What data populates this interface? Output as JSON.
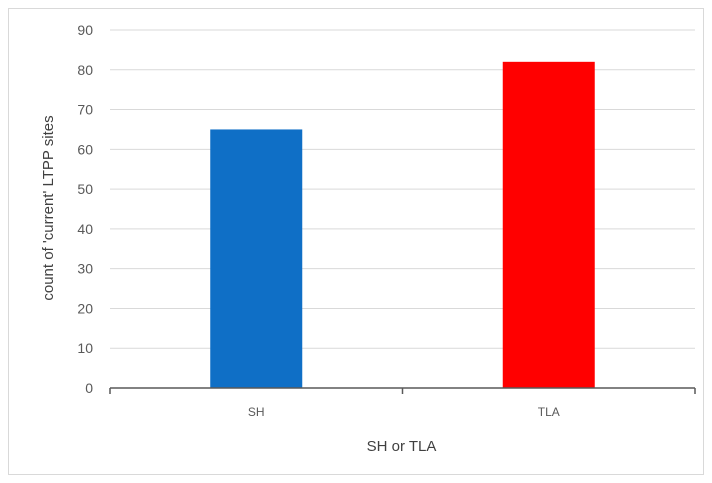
{
  "chart_data": {
    "type": "bar",
    "title": "",
    "xlabel": "SH or TLA",
    "ylabel": "count of 'current' LTPP sites",
    "categories": [
      "SH",
      "TLA"
    ],
    "values": [
      65,
      82
    ],
    "colors": [
      "#0f6fc6",
      "#ff0000"
    ],
    "ylim": [
      0,
      90
    ],
    "yticks": [
      0,
      10,
      20,
      30,
      40,
      50,
      60,
      70,
      80,
      90
    ],
    "grid": true,
    "legend": "none"
  },
  "colors": {
    "gridline": "#d9d9d9",
    "axis": "#595959"
  }
}
